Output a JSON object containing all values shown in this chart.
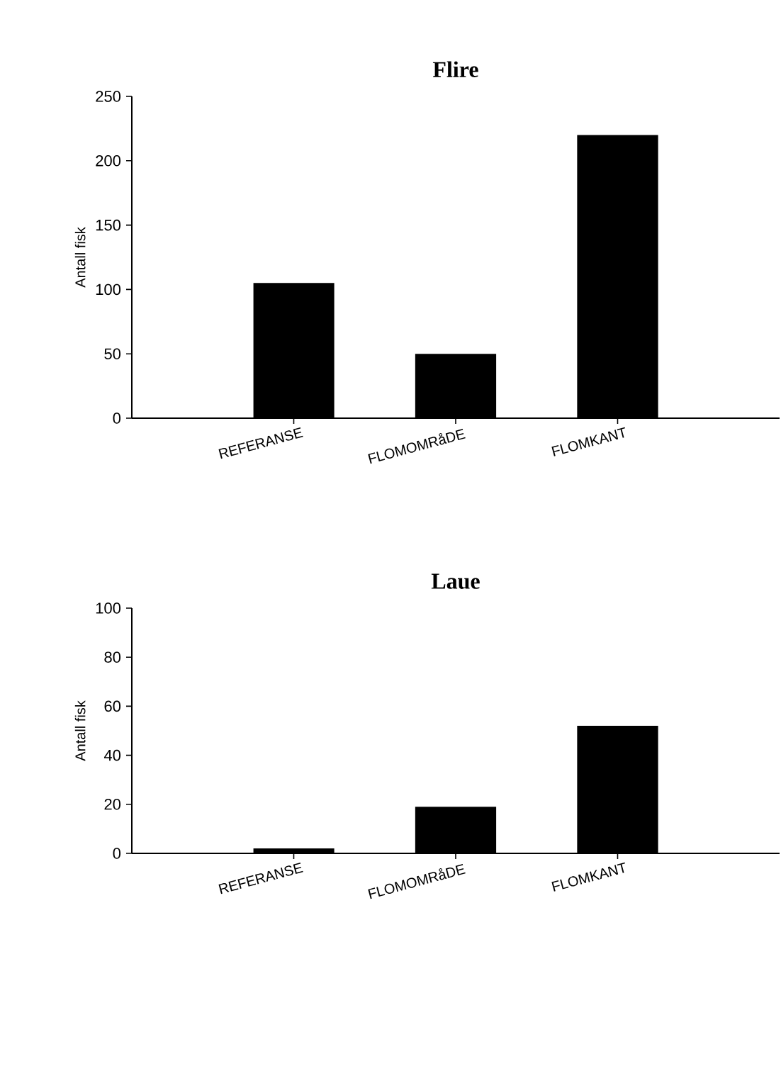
{
  "chart_data": [
    {
      "type": "bar",
      "title": "Flire",
      "ylabel": "Antall fisk",
      "categories": [
        "REFERANSE",
        "FLOMOMRåDE",
        "FLOMKANT"
      ],
      "values": [
        105,
        50,
        220
      ],
      "color": "#000000",
      "ylim": [
        0,
        250
      ],
      "yticks": [
        0,
        50,
        100,
        150,
        200,
        250
      ]
    },
    {
      "type": "bar",
      "title": "Laue",
      "ylabel": "Antall fisk",
      "categories": [
        "REFERANSE",
        "FLOMOMRåDE",
        "FLOMKANT"
      ],
      "values": [
        2,
        19,
        52
      ],
      "color": "#000000",
      "ylim": [
        0,
        100
      ],
      "yticks": [
        0,
        20,
        40,
        60,
        80,
        100
      ]
    }
  ]
}
